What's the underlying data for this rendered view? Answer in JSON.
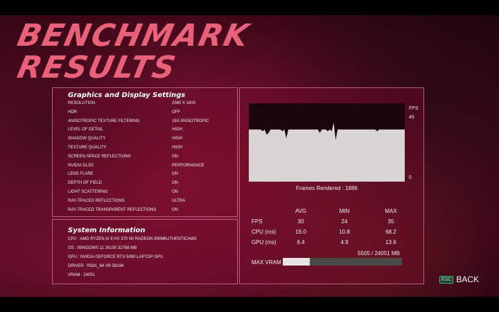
{
  "title": {
    "line1": "BENCHMARK",
    "line2": "RESULTS"
  },
  "graphics": {
    "heading": "Graphics and Display Settings",
    "rows": [
      {
        "label": "RESOLUTION",
        "value": "2560 X 1600"
      },
      {
        "label": "HDR",
        "value": "OFF"
      },
      {
        "label": "ANISOTROPIC TEXTURE FILTERING",
        "value": "16X ANISOTROPIC"
      },
      {
        "label": "LEVEL OF DETAIL",
        "value": "HIGH"
      },
      {
        "label": "SHADOW QUALITY",
        "value": "HIGH"
      },
      {
        "label": "TEXTURE QUALITY",
        "value": "HIGH"
      },
      {
        "label": "SCREEN-SPACE REFLECTIONS",
        "value": "ON"
      },
      {
        "label": "NVIDIA DLSS",
        "value": "PERFORMANCE"
      },
      {
        "label": "LENS FLARE",
        "value": "ON"
      },
      {
        "label": "DEPTH OF FIELD",
        "value": "ON"
      },
      {
        "label": "LIGHT SCATTERING",
        "value": "ON"
      },
      {
        "label": "RAY-TRACED REFLECTIONS",
        "value": "ULTRA"
      },
      {
        "label": "RAY-TRACED TRANSPARENT REFLECTIONS",
        "value": "ON"
      }
    ]
  },
  "system": {
    "heading": "System Information",
    "cpu": "CPU : AMD RYZEN AI 9 HX 370 W/ RADEON 890M",
    "cpu_vendor": "AUTHENTICAMD",
    "os": "OS : WINDOWS 11 26100 32768 MB",
    "gpu": "GPU : NVIDIA GEFORCE RTX 5090 LAPTOP GPU",
    "driver": "DRIVER  : R581_66 VR 58194",
    "vram": "VRAM : 24051"
  },
  "graph": {
    "unit_label": "FPS",
    "max_label": "45",
    "min_label": "0",
    "ymax": 45,
    "frames_rendered": "Frames Rendered : 1886",
    "fps_samples": [
      30,
      30,
      30,
      30,
      30,
      30,
      30,
      29,
      30,
      27,
      28,
      30,
      30,
      30,
      30,
      30,
      30,
      29,
      30,
      25,
      30,
      30,
      30,
      30,
      30,
      30,
      30,
      30,
      30,
      30,
      30,
      30,
      30,
      30,
      30,
      30,
      28,
      30,
      30,
      30,
      29,
      30,
      29,
      34,
      24,
      30,
      30,
      30,
      30,
      30,
      30,
      30,
      30,
      30,
      30,
      30,
      30,
      30,
      30,
      30,
      30,
      30,
      30,
      30,
      30,
      29,
      30,
      30,
      30,
      30,
      30,
      30,
      30,
      30,
      30,
      30,
      30,
      30,
      30,
      30
    ]
  },
  "stats": {
    "headers": [
      "AVG",
      "MIN",
      "MAX"
    ],
    "rows": [
      {
        "label": "FPS",
        "values": [
          "30",
          "24",
          "35"
        ]
      },
      {
        "label": "CPU (ms)",
        "values": [
          "16.0",
          "10.8",
          "68.2"
        ]
      },
      {
        "label": "GPU (ms)",
        "values": [
          "6.4",
          "4.9",
          "13.6"
        ]
      }
    ],
    "vram_text": "5505 / 24051 MB",
    "vram_label": "MAX VRAM",
    "vram_used": 5505,
    "vram_total": 24051
  },
  "back": {
    "key": "ESC",
    "label": "BACK",
    "key_color": "#3fbf80"
  }
}
